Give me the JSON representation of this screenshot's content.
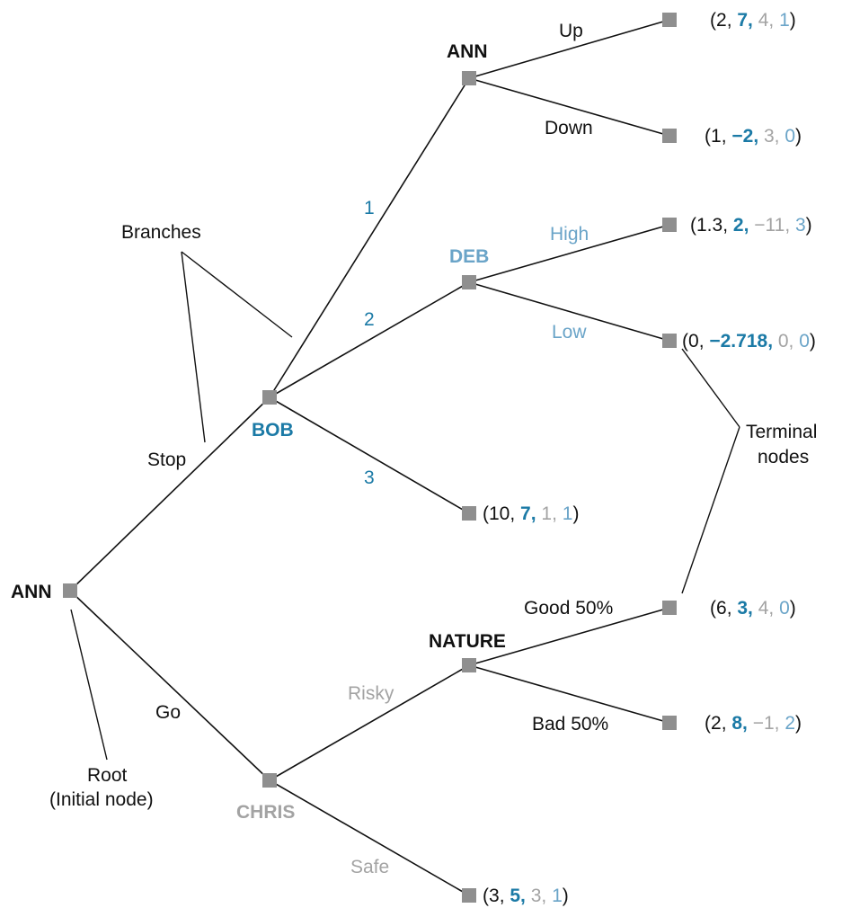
{
  "colors": {
    "ann": "#111111",
    "bob": "#1b7aa6",
    "chris": "#a3a3a3",
    "deb": "#6aa4c8",
    "nature": "#111111",
    "node": "#8f8f8f"
  },
  "players": {
    "ann_root": "ANN",
    "bob": "BOB",
    "chris": "CHRIS",
    "ann_second": "ANN",
    "deb": "DEB",
    "nature": "NATURE"
  },
  "moves": {
    "stop": "Stop",
    "go": "Go",
    "bob_1": "1",
    "bob_2": "2",
    "bob_3": "3",
    "up": "Up",
    "down": "Down",
    "high": "High",
    "low": "Low",
    "risky": "Risky",
    "safe": "Safe",
    "good": "Good 50%",
    "bad": "Bad 50%"
  },
  "annotations": {
    "branches": "Branches",
    "terminal_line1": "Terminal",
    "terminal_line2": "nodes",
    "root_line1": "Root",
    "root_line2": "(Initial node)"
  },
  "payoffs": {
    "up": [
      "2",
      "7",
      "4",
      "1"
    ],
    "down": [
      "1",
      "−2",
      "3",
      "0"
    ],
    "high": [
      "1.3",
      "2",
      "−11",
      "3"
    ],
    "low": [
      "0",
      "−2.718",
      "0",
      "0"
    ],
    "bob3": [
      "10",
      "7",
      "1",
      "1"
    ],
    "good": [
      "6",
      "3",
      "4",
      "0"
    ],
    "bad": [
      "2",
      "8",
      "−1",
      "2"
    ],
    "safe": [
      "3",
      "5",
      "3",
      "1"
    ]
  }
}
